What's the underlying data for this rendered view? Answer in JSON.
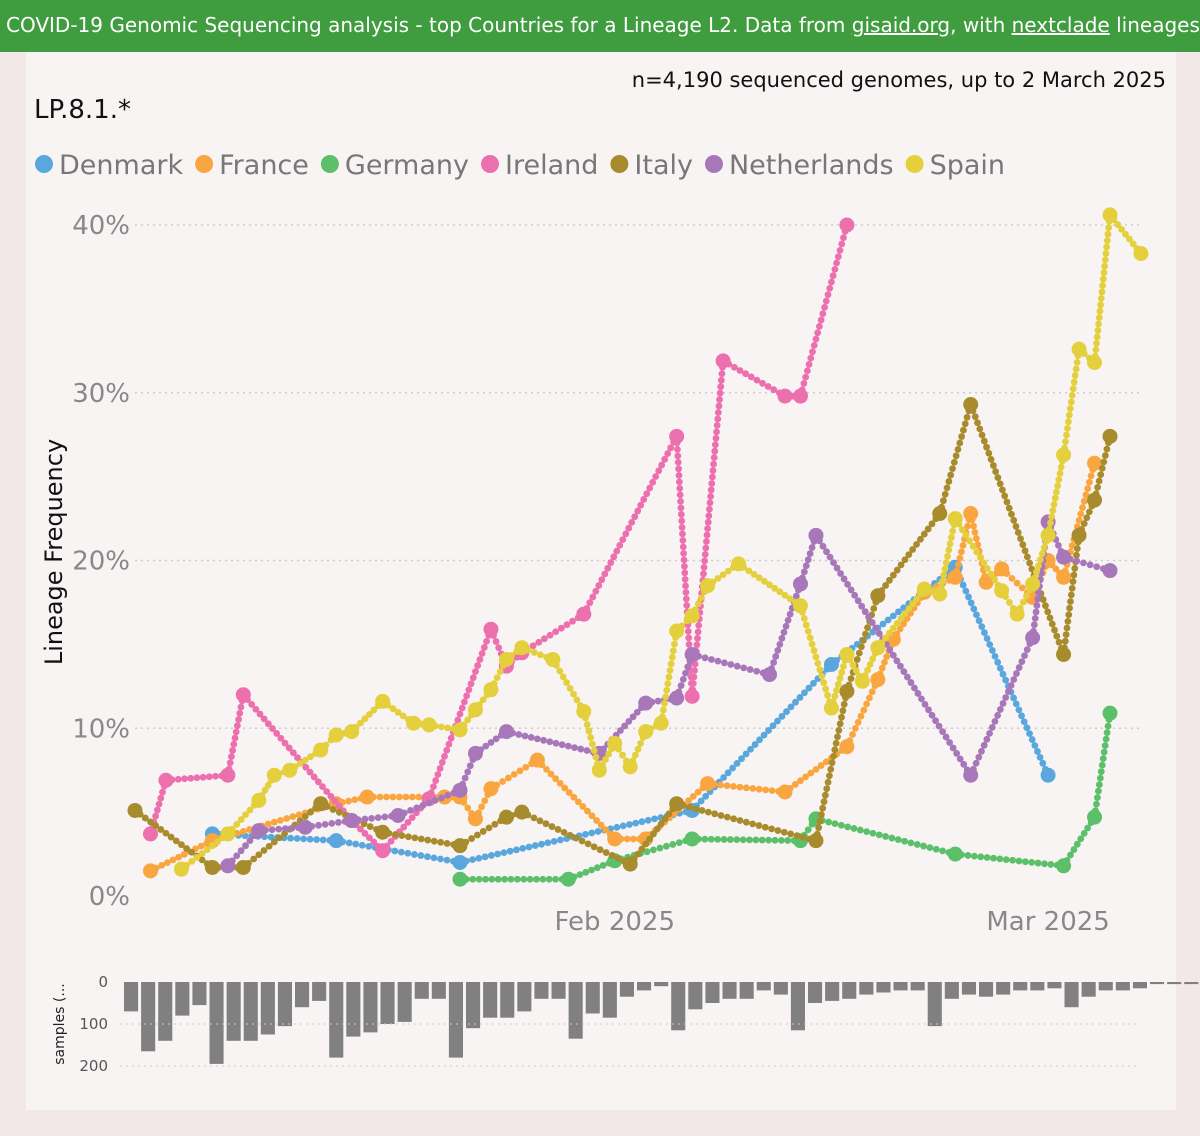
{
  "banner": {
    "part1": "COVID-19 Genomic Sequencing analysis - top Countries for a Lineage L2. Data from ",
    "link1": "gisaid.org",
    "part2": ", with ",
    "link2": "nextclade",
    "part3": " lineages Source"
  },
  "header": {
    "count_text": "n=4,190 sequenced genomes, up to 2 March 2025",
    "lineage_title": "LP.8.1.*"
  },
  "colors": {
    "Denmark": "#5aa7dd",
    "France": "#f9a640",
    "Germany": "#5cbf6a",
    "Ireland": "#ec6fae",
    "Italy": "#a88b2c",
    "Netherlands": "#a777b9",
    "Spain": "#e4cf3c",
    "grid": "#cccccc",
    "bars": "#808080"
  },
  "chart_data": [
    {
      "type": "line",
      "ylabel": "Lineage Frequency",
      "ylim": [
        0,
        42
      ],
      "yticks": [
        0,
        10,
        20,
        30,
        40
      ],
      "ytick_labels": [
        "0%",
        "10%",
        "20%",
        "30%",
        "40%"
      ],
      "xlim": [
        "2025-01-01",
        "2025-03-05"
      ],
      "xticks": [
        "2025-02-01",
        "2025-03-01"
      ],
      "xtick_labels": [
        "Feb 2025",
        "Mar 2025"
      ],
      "legend": [
        "Denmark",
        "France",
        "Germany",
        "Ireland",
        "Italy",
        "Netherlands",
        "Spain"
      ],
      "legend_position": "top-left",
      "grid": "horizontal dotted",
      "series": [
        {
          "name": "Denmark",
          "points": [
            [
              "2025-01-06",
              3.7
            ],
            [
              "2025-01-14",
              3.3
            ],
            [
              "2025-01-22",
              2.0
            ],
            [
              "2025-02-06",
              5.1
            ],
            [
              "2025-02-15",
              13.8
            ],
            [
              "2025-02-23",
              19.6
            ],
            [
              "2025-03-01",
              7.2
            ]
          ]
        },
        {
          "name": "France",
          "points": [
            [
              "2025-01-02",
              1.5
            ],
            [
              "2025-01-06",
              3.3
            ],
            [
              "2025-01-14",
              5.5
            ],
            [
              "2025-01-16",
              5.9
            ],
            [
              "2025-01-21",
              5.9
            ],
            [
              "2025-01-22",
              5.9
            ],
            [
              "2025-01-23",
              4.6
            ],
            [
              "2025-01-24",
              6.4
            ],
            [
              "2025-01-27",
              8.1
            ],
            [
              "2025-02-01",
              3.4
            ],
            [
              "2025-02-03",
              3.4
            ],
            [
              "2025-02-07",
              6.7
            ],
            [
              "2025-02-12",
              6.2
            ],
            [
              "2025-02-16",
              8.9
            ],
            [
              "2025-02-18",
              12.9
            ],
            [
              "2025-02-19",
              15.3
            ],
            [
              "2025-02-21",
              18.1
            ],
            [
              "2025-02-23",
              19.0
            ],
            [
              "2025-02-24",
              22.8
            ],
            [
              "2025-02-25",
              18.7
            ],
            [
              "2025-02-26",
              19.5
            ],
            [
              "2025-02-28",
              17.8
            ],
            [
              "2025-03-01",
              20.0
            ],
            [
              "2025-03-02",
              19.0
            ],
            [
              "2025-03-04",
              25.8
            ]
          ]
        },
        {
          "name": "Germany",
          "points": [
            [
              "2025-01-22",
              1.0
            ],
            [
              "2025-01-29",
              1.0
            ],
            [
              "2025-02-01",
              2.1
            ],
            [
              "2025-02-06",
              3.4
            ],
            [
              "2025-02-13",
              3.3
            ],
            [
              "2025-02-14",
              4.6
            ],
            [
              "2025-02-23",
              2.5
            ],
            [
              "2025-03-02",
              1.8
            ],
            [
              "2025-03-04",
              4.7
            ],
            [
              "2025-03-05",
              10.9
            ]
          ]
        },
        {
          "name": "Ireland",
          "points": [
            [
              "2025-01-02",
              3.7
            ],
            [
              "2025-01-03",
              6.9
            ],
            [
              "2025-01-07",
              7.2
            ],
            [
              "2025-01-08",
              12.0
            ],
            [
              "2025-01-15",
              4.5
            ],
            [
              "2025-01-17",
              2.7
            ],
            [
              "2025-01-20",
              5.8
            ],
            [
              "2025-01-24",
              15.9
            ],
            [
              "2025-01-25",
              13.7
            ],
            [
              "2025-01-26",
              14.5
            ],
            [
              "2025-01-30",
              16.8
            ],
            [
              "2025-02-05",
              27.4
            ],
            [
              "2025-02-06",
              11.9
            ],
            [
              "2025-02-08",
              31.9
            ],
            [
              "2025-02-12",
              29.8
            ],
            [
              "2025-02-13",
              29.8
            ],
            [
              "2025-02-16",
              40.0
            ]
          ]
        },
        {
          "name": "Italy",
          "points": [
            [
              "2025-01-01",
              5.1
            ],
            [
              "2025-01-06",
              1.7
            ],
            [
              "2025-01-08",
              1.7
            ],
            [
              "2025-01-13",
              5.5
            ],
            [
              "2025-01-17",
              3.8
            ],
            [
              "2025-01-22",
              3.0
            ],
            [
              "2025-01-25",
              4.7
            ],
            [
              "2025-01-26",
              5.0
            ],
            [
              "2025-02-02",
              1.9
            ],
            [
              "2025-02-05",
              5.5
            ],
            [
              "2025-02-14",
              3.3
            ],
            [
              "2025-02-16",
              12.2
            ],
            [
              "2025-02-18",
              17.9
            ],
            [
              "2025-02-22",
              22.8
            ],
            [
              "2025-02-24",
              29.3
            ],
            [
              "2025-03-02",
              14.4
            ],
            [
              "2025-03-03",
              21.5
            ],
            [
              "2025-03-04",
              23.6
            ],
            [
              "2025-03-05",
              27.4
            ]
          ]
        },
        {
          "name": "Netherlands",
          "points": [
            [
              "2025-01-07",
              1.8
            ],
            [
              "2025-01-09",
              3.9
            ],
            [
              "2025-01-12",
              4.1
            ],
            [
              "2025-01-15",
              4.5
            ],
            [
              "2025-01-18",
              4.8
            ],
            [
              "2025-01-22",
              6.3
            ],
            [
              "2025-01-23",
              8.5
            ],
            [
              "2025-01-25",
              9.8
            ],
            [
              "2025-01-31",
              8.5
            ],
            [
              "2025-02-03",
              11.5
            ],
            [
              "2025-02-05",
              11.8
            ],
            [
              "2025-02-06",
              14.4
            ],
            [
              "2025-02-11",
              13.2
            ],
            [
              "2025-02-13",
              18.6
            ],
            [
              "2025-02-14",
              21.5
            ],
            [
              "2025-02-24",
              7.2
            ],
            [
              "2025-02-28",
              15.4
            ],
            [
              "2025-03-01",
              22.3
            ],
            [
              "2025-03-02",
              20.2
            ],
            [
              "2025-03-05",
              19.4
            ]
          ]
        },
        {
          "name": "Spain",
          "points": [
            [
              "2025-01-04",
              1.6
            ],
            [
              "2025-01-07",
              3.7
            ],
            [
              "2025-01-09",
              5.7
            ],
            [
              "2025-01-10",
              7.2
            ],
            [
              "2025-01-11",
              7.5
            ],
            [
              "2025-01-13",
              8.7
            ],
            [
              "2025-01-14",
              9.6
            ],
            [
              "2025-01-15",
              9.8
            ],
            [
              "2025-01-17",
              11.6
            ],
            [
              "2025-01-19",
              10.3
            ],
            [
              "2025-01-20",
              10.2
            ],
            [
              "2025-01-22",
              9.9
            ],
            [
              "2025-01-23",
              11.1
            ],
            [
              "2025-01-24",
              12.3
            ],
            [
              "2025-01-25",
              14.1
            ],
            [
              "2025-01-26",
              14.8
            ],
            [
              "2025-01-28",
              14.1
            ],
            [
              "2025-01-30",
              11.0
            ],
            [
              "2025-01-31",
              7.5
            ],
            [
              "2025-02-01",
              9.1
            ],
            [
              "2025-02-02",
              7.7
            ],
            [
              "2025-02-03",
              9.8
            ],
            [
              "2025-02-04",
              10.3
            ],
            [
              "2025-02-05",
              15.8
            ],
            [
              "2025-02-06",
              16.7
            ],
            [
              "2025-02-07",
              18.5
            ],
            [
              "2025-02-09",
              19.8
            ],
            [
              "2025-02-13",
              17.3
            ],
            [
              "2025-02-15",
              11.2
            ],
            [
              "2025-02-16",
              14.4
            ],
            [
              "2025-02-17",
              12.8
            ],
            [
              "2025-02-18",
              14.8
            ],
            [
              "2025-02-21",
              18.3
            ],
            [
              "2025-02-22",
              18.0
            ],
            [
              "2025-02-23",
              22.5
            ],
            [
              "2025-02-26",
              18.2
            ],
            [
              "2025-02-27",
              16.8
            ],
            [
              "2025-02-28",
              18.6
            ],
            [
              "2025-03-01",
              21.5
            ],
            [
              "2025-03-02",
              26.3
            ],
            [
              "2025-03-03",
              32.6
            ],
            [
              "2025-03-04",
              31.8
            ],
            [
              "2025-03-05",
              40.6
            ],
            [
              "2025-03-07",
              38.3
            ]
          ]
        }
      ]
    },
    {
      "type": "bar",
      "ylabel": "samples (...",
      "ylim": [
        0,
        200
      ],
      "yticks": [
        0,
        100,
        200
      ],
      "orientation": "downward",
      "x_start": "2025-01-01",
      "values": [
        70,
        165,
        140,
        80,
        55,
        195,
        140,
        140,
        125,
        105,
        60,
        45,
        180,
        130,
        120,
        100,
        95,
        40,
        40,
        180,
        110,
        85,
        85,
        70,
        40,
        40,
        135,
        75,
        85,
        35,
        20,
        10,
        115,
        65,
        50,
        40,
        40,
        20,
        30,
        115,
        50,
        45,
        40,
        30,
        25,
        20,
        20,
        105,
        40,
        30,
        35,
        30,
        20,
        20,
        15,
        60,
        35,
        20,
        20,
        15,
        5,
        5,
        5
      ]
    }
  ]
}
